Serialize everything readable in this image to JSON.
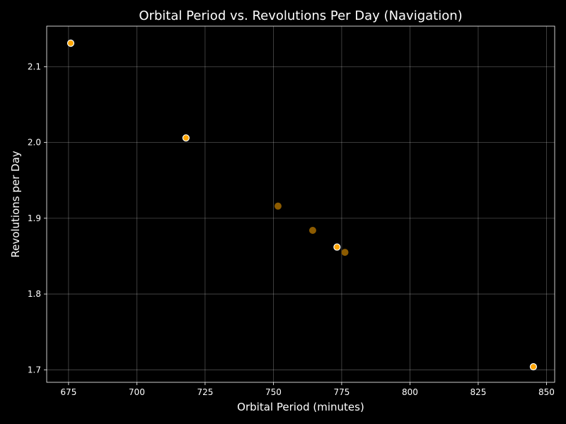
{
  "chart_data": {
    "type": "scatter",
    "title": "Orbital Period vs. Revolutions Per Day (Navigation)",
    "xlabel": "Orbital Period (minutes)",
    "ylabel": "Revolutions per Day",
    "xlim": [
      667,
      853
    ],
    "ylim": [
      1.6835,
      2.1535
    ],
    "xticks": [
      675,
      700,
      725,
      750,
      775,
      800,
      825,
      850
    ],
    "yticks": [
      1.7,
      1.8,
      1.9,
      2.0,
      2.1
    ],
    "xtick_labels": [
      "675",
      "700",
      "725",
      "750",
      "775",
      "800",
      "825",
      "850"
    ],
    "ytick_labels": [
      "1.7",
      "1.8",
      "1.9",
      "2.0",
      "2.1"
    ],
    "grid": true,
    "points": [
      {
        "x": 675.8,
        "y": 2.131,
        "highlight": true
      },
      {
        "x": 718.0,
        "y": 2.006,
        "highlight": true
      },
      {
        "x": 751.7,
        "y": 1.916,
        "highlight": false
      },
      {
        "x": 764.4,
        "y": 1.884,
        "highlight": false
      },
      {
        "x": 773.3,
        "y": 1.862,
        "highlight": true
      },
      {
        "x": 776.2,
        "y": 1.855,
        "highlight": false
      },
      {
        "x": 845.2,
        "y": 1.704,
        "highlight": true
      }
    ],
    "colors": {
      "background": "#000000",
      "marker_fill": "#ffa500",
      "marker_edge_highlight": "#ffffff",
      "marker_edge_plain": "#8a5a00",
      "text": "#ffffff"
    }
  }
}
